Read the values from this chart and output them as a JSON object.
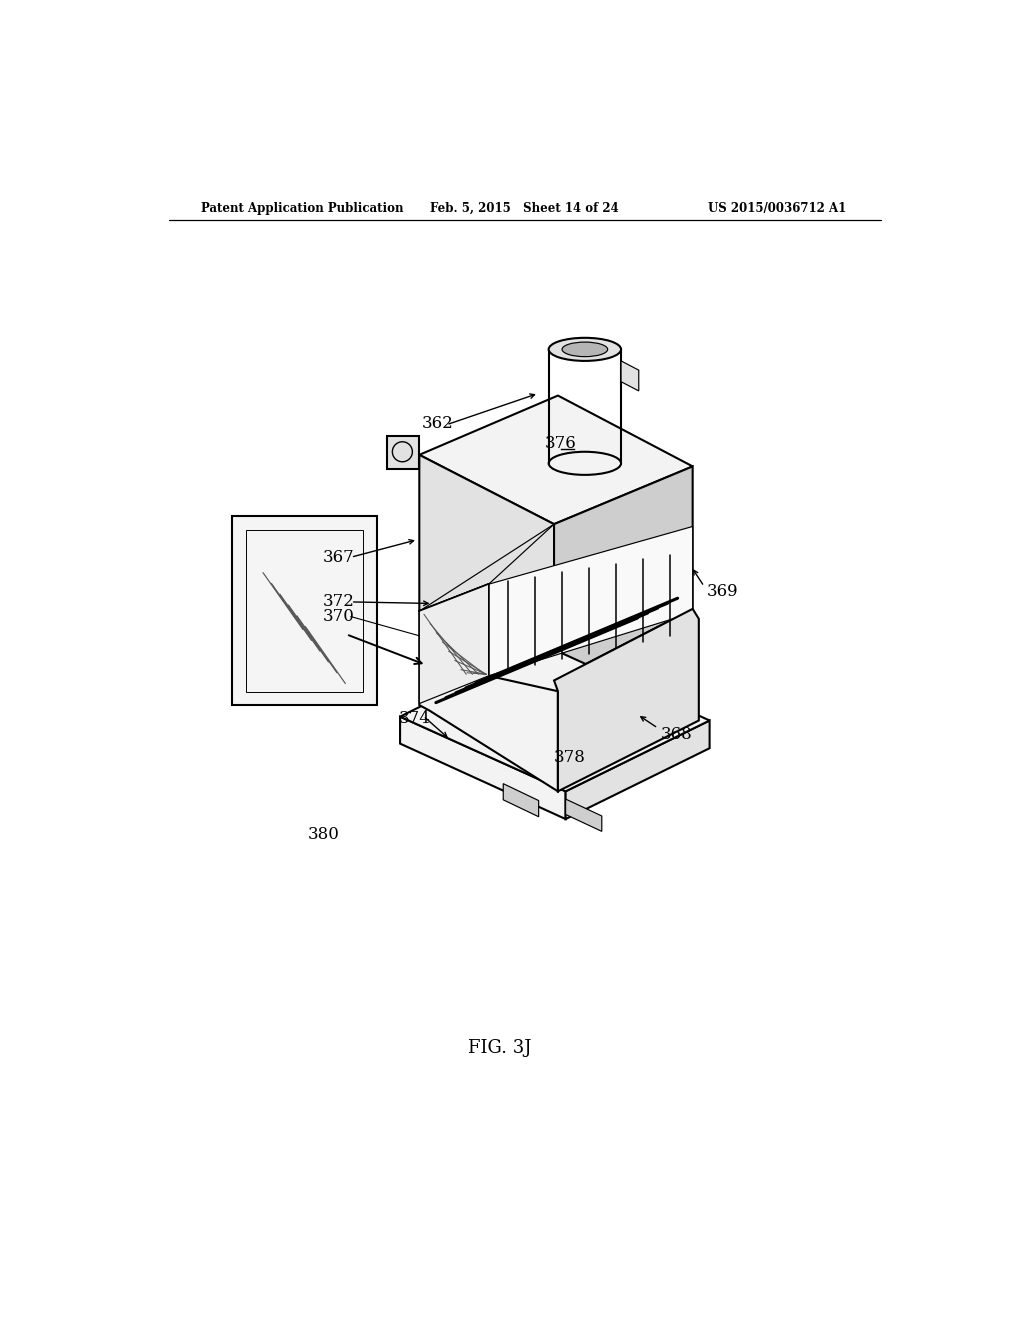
{
  "bg": "#ffffff",
  "lc": "#000000",
  "header_left": "Patent Application Publication",
  "header_mid": "Feb. 5, 2015   Sheet 14 of 24",
  "header_right": "US 2015/0036712 A1",
  "fig_label": "FIG. 3J",
  "gl": "#f3f3f3",
  "gm": "#e2e2e2",
  "gd": "#cecece",
  "gdd": "#b5b5b5",
  "lw": 1.5,
  "lw_thin": 0.85,
  "lw_hatch": 0.75,
  "fs": 12,
  "fs_hdr": 8.5,
  "fs_fig": 13
}
